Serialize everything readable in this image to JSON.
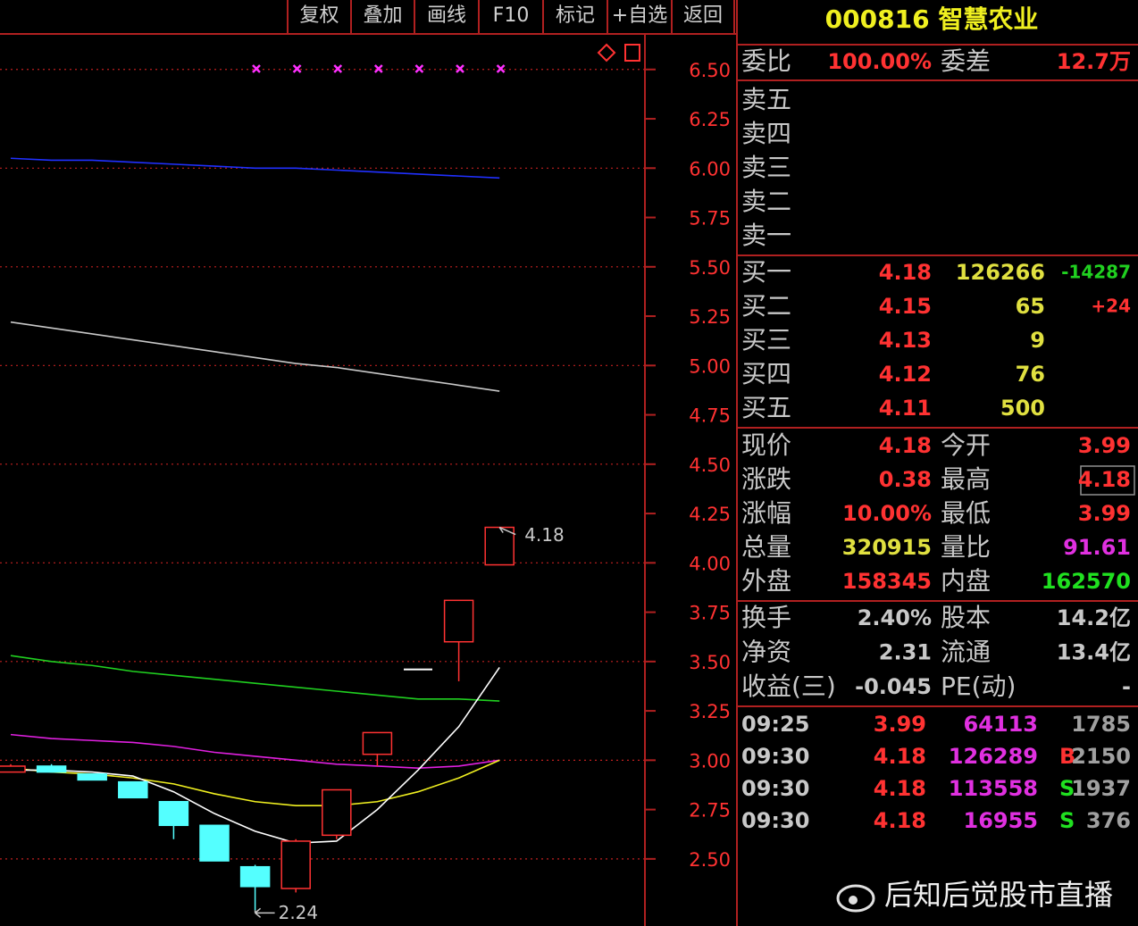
{
  "toolbar": [
    "复权",
    "叠加",
    "画线",
    "F10",
    "标记",
    "+自选",
    "返回"
  ],
  "chart_data": {
    "type": "candlestick",
    "open": [
      2.94,
      2.97,
      2.93,
      2.89,
      2.79,
      2.67,
      2.46,
      2.35,
      2.62,
      3.03,
      3.46,
      3.6,
      3.99
    ],
    "high": [
      2.98,
      2.98,
      2.93,
      2.89,
      2.79,
      2.67,
      2.47,
      2.6,
      2.85,
      3.14,
      3.46,
      3.81,
      4.18
    ],
    "low": [
      2.94,
      2.94,
      2.9,
      2.81,
      2.6,
      2.49,
      2.24,
      2.33,
      2.6,
      2.97,
      3.46,
      3.4,
      3.99
    ],
    "close": [
      2.97,
      2.94,
      2.9,
      2.81,
      2.67,
      2.49,
      2.36,
      2.59,
      2.85,
      3.14,
      3.46,
      3.81,
      4.18
    ],
    "up_color": "#ff3232",
    "down_color": "#54ffff",
    "flat_color": "#ffffff",
    "lines": [
      {
        "color": "#2030ff",
        "values": [
          6.05,
          6.04,
          6.04,
          6.03,
          6.02,
          6.01,
          6.0,
          6.0,
          5.99,
          5.98,
          5.97,
          5.96,
          5.95
        ]
      },
      {
        "color": "#c8c8c8",
        "values": [
          5.22,
          5.19,
          5.16,
          5.13,
          5.1,
          5.07,
          5.04,
          5.01,
          4.99,
          4.96,
          4.93,
          4.9,
          4.87
        ]
      },
      {
        "color": "#20d020",
        "values": [
          3.53,
          3.5,
          3.48,
          3.45,
          3.43,
          3.41,
          3.39,
          3.37,
          3.35,
          3.33,
          3.31,
          3.31,
          3.3
        ]
      },
      {
        "color": "#e020e0",
        "values": [
          3.13,
          3.11,
          3.1,
          3.09,
          3.07,
          3.04,
          3.02,
          3.0,
          2.98,
          2.97,
          2.96,
          2.97,
          3.0
        ]
      },
      {
        "color": "#f0f020",
        "values": [
          2.96,
          2.94,
          2.93,
          2.91,
          2.88,
          2.83,
          2.79,
          2.77,
          2.77,
          2.79,
          2.84,
          2.91,
          3.0
        ]
      },
      {
        "color": "#ffffff",
        "values": [
          2.95,
          2.95,
          2.94,
          2.92,
          2.84,
          2.73,
          2.64,
          2.58,
          2.59,
          2.75,
          2.95,
          3.17,
          3.47
        ]
      }
    ],
    "annotations": [
      {
        "value": 4.18,
        "label": "4.18"
      },
      {
        "value": 2.24,
        "label": "2.24"
      }
    ],
    "ylim": [
      2.16,
      6.68
    ],
    "yticks": [
      {
        "value": 2.5,
        "label": "2.50"
      },
      {
        "value": 2.75,
        "label": "2.75"
      },
      {
        "value": 3.0,
        "label": "3.00"
      },
      {
        "value": 3.25,
        "label": "3.25"
      },
      {
        "value": 3.5,
        "label": "3.50"
      },
      {
        "value": 3.75,
        "label": "3.75"
      },
      {
        "value": 4.0,
        "label": "4.00"
      },
      {
        "value": 4.25,
        "label": "4.25"
      },
      {
        "value": 4.5,
        "label": "4.50"
      },
      {
        "value": 4.75,
        "label": "4.75"
      },
      {
        "value": 5.0,
        "label": "5.00"
      },
      {
        "value": 5.25,
        "label": "5.25"
      },
      {
        "value": 5.5,
        "label": "5.50"
      },
      {
        "value": 5.75,
        "label": "5.75"
      },
      {
        "value": 6.0,
        "label": "6.00"
      },
      {
        "value": 6.25,
        "label": "6.25"
      },
      {
        "value": 6.5,
        "label": "6.50"
      }
    ],
    "grid": true
  },
  "quote_panel": {
    "title": "000816 智慧农业",
    "order_ratio": {
      "rows": [
        [
          "委比",
          "100.00%",
          "委差",
          "12.7万"
        ]
      ],
      "colors": [
        [
          "#c8c8c8",
          "#ff3232",
          "#c8c8c8",
          "#ff3232"
        ]
      ]
    },
    "sell": {
      "rows": [
        [
          "卖五"
        ],
        [
          "卖四"
        ],
        [
          "卖三"
        ],
        [
          "卖二"
        ],
        [
          "卖一"
        ]
      ],
      "colors": [
        [
          "#c8c8c8"
        ],
        [
          "#c8c8c8"
        ],
        [
          "#c8c8c8"
        ],
        [
          "#c8c8c8"
        ],
        [
          "#c8c8c8"
        ]
      ]
    },
    "buy": {
      "rows": [
        [
          "买一",
          "4.18",
          "126266",
          "-14287"
        ],
        [
          "买二",
          "4.15",
          "65",
          "+24"
        ],
        [
          "买三",
          "4.13",
          "9"
        ],
        [
          "买四",
          "4.12",
          "76"
        ],
        [
          "买五",
          "4.11",
          "500"
        ]
      ],
      "colors": [
        [
          "#c8c8c8",
          "#ff3232",
          "#e0e040",
          "#20d020"
        ],
        [
          "#c8c8c8",
          "#ff3232",
          "#e0e040",
          "#ff3232"
        ],
        [
          "#c8c8c8",
          "#ff3232",
          "#e0e040"
        ],
        [
          "#c8c8c8",
          "#ff3232",
          "#e0e040"
        ],
        [
          "#c8c8c8",
          "#ff3232",
          "#e0e040"
        ]
      ]
    },
    "quote": {
      "rows": [
        [
          "现价",
          "4.18",
          "今开",
          "3.99"
        ],
        [
          "涨跌",
          "0.38",
          "最高",
          "4.18"
        ],
        [
          "涨幅",
          "10.00%",
          "最低",
          "3.99"
        ],
        [
          "总量",
          "320915",
          "量比",
          "91.61"
        ],
        [
          "外盘",
          "158345",
          "内盘",
          "162570"
        ]
      ],
      "colors": [
        [
          "#c8c8c8",
          "#ff3232",
          "#c8c8c8",
          "#ff3232"
        ],
        [
          "#c8c8c8",
          "#ff3232",
          "#c8c8c8",
          "#ff3232"
        ],
        [
          "#c8c8c8",
          "#ff3232",
          "#c8c8c8",
          "#ff3232"
        ],
        [
          "#c8c8c8",
          "#e0e040",
          "#c8c8c8",
          "#e030e0"
        ],
        [
          "#c8c8c8",
          "#ff3232",
          "#c8c8c8",
          "#20e020"
        ]
      ]
    },
    "fundamentals": {
      "rows": [
        [
          "换手",
          "2.40%",
          "股本",
          "14.2亿"
        ],
        [
          "净资",
          "2.31",
          "流通",
          "13.4亿"
        ],
        [
          "收益(三)",
          "-0.045",
          "PE(动)",
          "-"
        ]
      ],
      "colors": [
        [
          "#c8c8c8",
          "#c8c8c8",
          "#c8c8c8",
          "#c8c8c8"
        ],
        [
          "#c8c8c8",
          "#c8c8c8",
          "#c8c8c8",
          "#c8c8c8"
        ],
        [
          "#c8c8c8",
          "#c8c8c8",
          "#c8c8c8",
          "#c8c8c8"
        ]
      ]
    },
    "ticks": {
      "rows": [
        [
          "09:25",
          "3.99",
          "64113",
          null,
          "1785"
        ],
        [
          "09:30",
          "4.18",
          "126289",
          "B",
          "2150"
        ],
        [
          "09:30",
          "4.18",
          "113558",
          "S",
          "1937"
        ],
        [
          "09:30",
          "4.18",
          "16955",
          "S",
          "376"
        ]
      ],
      "colors": [
        [
          "#c8c8c8",
          "#ff3232",
          "#e030e0",
          "#c8c8c8",
          "#a0a0a0"
        ],
        [
          "#c8c8c8",
          "#ff3232",
          "#e030e0",
          "#ff3232",
          "#a0a0a0"
        ],
        [
          "#c8c8c8",
          "#ff3232",
          "#e030e0",
          "#20e020",
          "#a0a0a0"
        ],
        [
          "#c8c8c8",
          "#ff3232",
          "#e030e0",
          "#20e020",
          "#a0a0a0"
        ]
      ]
    }
  },
  "watermark": "后知后觉股市直播"
}
